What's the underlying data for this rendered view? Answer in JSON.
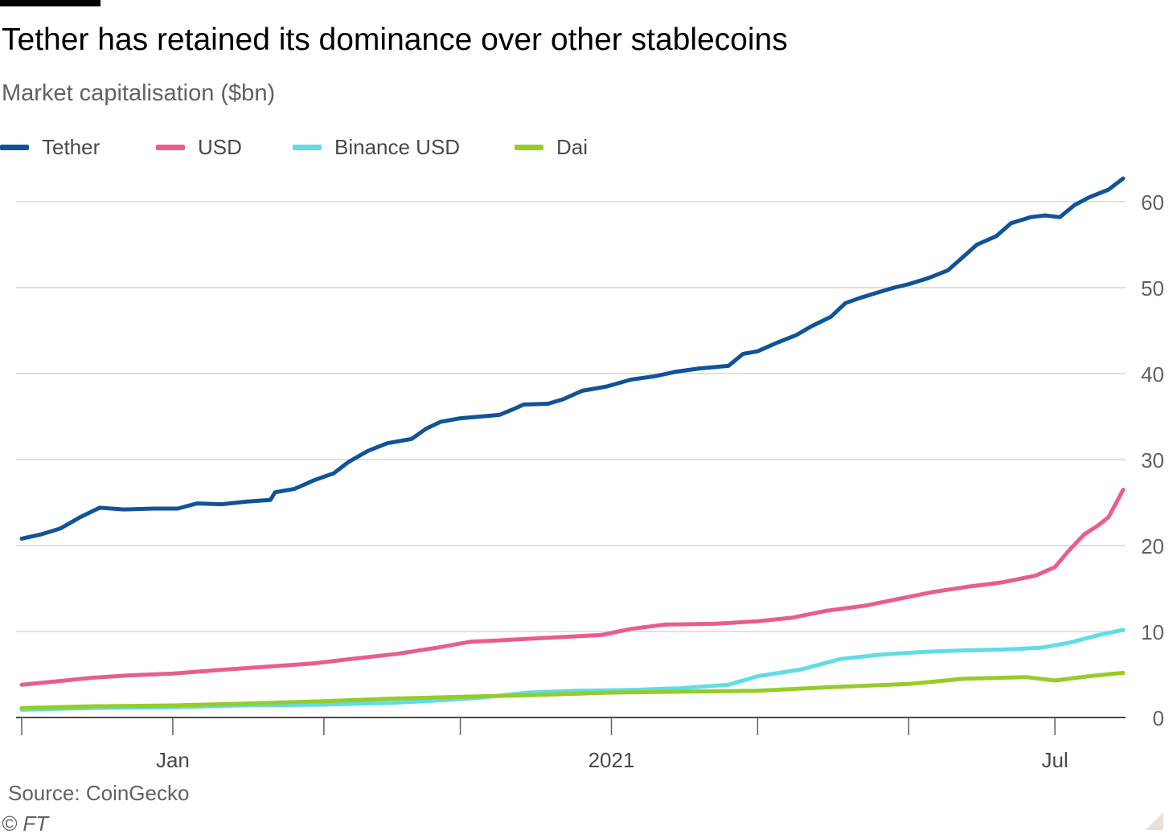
{
  "header": {
    "title": "Tether has retained its dominance over other stablecoins",
    "subtitle": "Market capitalisation ($bn)"
  },
  "footer": {
    "source": "Source: CoinGecko",
    "copyright": "© FT"
  },
  "colors": {
    "tether": "#0f5499",
    "usd": "#e95d8c",
    "binance": "#5fdde5",
    "dai": "#96cc28",
    "grid": "#e6e0d8",
    "axis_text": "#66605c"
  },
  "chart_data": {
    "type": "line",
    "title": "Tether has retained its dominance over other stablecoins",
    "ylabel": "Market capitalisation ($bn)",
    "ylim": [
      0,
      65
    ],
    "y_ticks": [
      0,
      10,
      20,
      30,
      40,
      50,
      60
    ],
    "y_axis_side": "right",
    "x_range": [
      "2020-12-01",
      "2021-07-15"
    ],
    "x_labels": [
      {
        "label": "Jan",
        "date": "2021-01-01"
      },
      {
        "label": "2021",
        "date": "2021-04-01"
      },
      {
        "label": "Jul",
        "date": "2021-07-01"
      }
    ],
    "x_minor_ticks": [
      "2020-12-01",
      "2021-01-01",
      "2021-02-01",
      "2021-03-01",
      "2021-04-01",
      "2021-05-01",
      "2021-06-01",
      "2021-07-01"
    ],
    "legend_position": "top-left",
    "grid": true,
    "series": [
      {
        "name": "Tether",
        "color": "#0f5499",
        "points": [
          [
            "2020-12-01",
            20.8
          ],
          [
            "2020-12-05",
            21.3
          ],
          [
            "2020-12-09",
            22.0
          ],
          [
            "2020-12-13",
            23.3
          ],
          [
            "2020-12-17",
            24.4
          ],
          [
            "2020-12-22",
            24.2
          ],
          [
            "2020-12-28",
            24.3
          ],
          [
            "2021-01-02",
            24.3
          ],
          [
            "2021-01-06",
            24.9
          ],
          [
            "2021-01-11",
            24.8
          ],
          [
            "2021-01-16",
            25.1
          ],
          [
            "2021-01-21",
            25.3
          ],
          [
            "2021-01-22",
            26.2
          ],
          [
            "2021-01-26",
            26.6
          ],
          [
            "2021-01-30",
            27.6
          ],
          [
            "2021-02-03",
            28.4
          ],
          [
            "2021-02-06",
            29.7
          ],
          [
            "2021-02-10",
            31.0
          ],
          [
            "2021-02-14",
            31.9
          ],
          [
            "2021-02-19",
            32.4
          ],
          [
            "2021-02-22",
            33.6
          ],
          [
            "2021-02-25",
            34.4
          ],
          [
            "2021-03-01",
            34.8
          ],
          [
            "2021-03-05",
            35.0
          ],
          [
            "2021-03-09",
            35.2
          ],
          [
            "2021-03-12",
            35.9
          ],
          [
            "2021-03-14",
            36.4
          ],
          [
            "2021-03-19",
            36.5
          ],
          [
            "2021-03-22",
            37.0
          ],
          [
            "2021-03-26",
            38.0
          ],
          [
            "2021-03-31",
            38.5
          ],
          [
            "2021-04-05",
            39.3
          ],
          [
            "2021-04-10",
            39.7
          ],
          [
            "2021-04-14",
            40.2
          ],
          [
            "2021-04-19",
            40.6
          ],
          [
            "2021-04-23",
            40.8
          ],
          [
            "2021-04-25",
            40.9
          ],
          [
            "2021-04-28",
            42.3
          ],
          [
            "2021-05-01",
            42.6
          ],
          [
            "2021-05-05",
            43.6
          ],
          [
            "2021-05-09",
            44.5
          ],
          [
            "2021-05-12",
            45.5
          ],
          [
            "2021-05-16",
            46.6
          ],
          [
            "2021-05-19",
            48.2
          ],
          [
            "2021-05-22",
            48.8
          ],
          [
            "2021-05-26",
            49.5
          ],
          [
            "2021-05-29",
            50.0
          ],
          [
            "2021-06-01",
            50.4
          ],
          [
            "2021-06-05",
            51.1
          ],
          [
            "2021-06-09",
            52.0
          ],
          [
            "2021-06-12",
            53.5
          ],
          [
            "2021-06-15",
            55.0
          ],
          [
            "2021-06-19",
            56.0
          ],
          [
            "2021-06-22",
            57.5
          ],
          [
            "2021-06-26",
            58.2
          ],
          [
            "2021-06-29",
            58.4
          ],
          [
            "2021-07-02",
            58.2
          ],
          [
            "2021-07-05",
            59.6
          ],
          [
            "2021-07-08",
            60.5
          ],
          [
            "2021-07-12",
            61.4
          ],
          [
            "2021-07-15",
            62.7
          ]
        ]
      },
      {
        "name": "USD",
        "color": "#e95d8c",
        "points": [
          [
            "2020-12-01",
            3.8
          ],
          [
            "2020-12-08",
            4.2
          ],
          [
            "2020-12-15",
            4.6
          ],
          [
            "2020-12-23",
            4.9
          ],
          [
            "2021-01-01",
            5.1
          ],
          [
            "2021-01-10",
            5.5
          ],
          [
            "2021-01-20",
            5.9
          ],
          [
            "2021-01-30",
            6.3
          ],
          [
            "2021-02-08",
            6.9
          ],
          [
            "2021-02-16",
            7.4
          ],
          [
            "2021-02-24",
            8.1
          ],
          [
            "2021-03-03",
            8.8
          ],
          [
            "2021-03-10",
            9.0
          ],
          [
            "2021-03-20",
            9.3
          ],
          [
            "2021-03-30",
            9.6
          ],
          [
            "2021-04-05",
            10.3
          ],
          [
            "2021-04-12",
            10.8
          ],
          [
            "2021-04-22",
            10.9
          ],
          [
            "2021-05-01",
            11.2
          ],
          [
            "2021-05-08",
            11.6
          ],
          [
            "2021-05-15",
            12.4
          ],
          [
            "2021-05-23",
            13.0
          ],
          [
            "2021-05-30",
            13.8
          ],
          [
            "2021-06-06",
            14.6
          ],
          [
            "2021-06-13",
            15.2
          ],
          [
            "2021-06-20",
            15.7
          ],
          [
            "2021-06-27",
            16.5
          ],
          [
            "2021-07-01",
            17.5
          ],
          [
            "2021-07-04",
            19.5
          ],
          [
            "2021-07-07",
            21.3
          ],
          [
            "2021-07-10",
            22.4
          ],
          [
            "2021-07-12",
            23.3
          ],
          [
            "2021-07-15",
            26.5
          ]
        ]
      },
      {
        "name": "Binance USD",
        "color": "#5fdde5",
        "points": [
          [
            "2020-12-01",
            0.9
          ],
          [
            "2020-12-15",
            1.1
          ],
          [
            "2021-01-01",
            1.2
          ],
          [
            "2021-01-15",
            1.4
          ],
          [
            "2021-02-01",
            1.5
          ],
          [
            "2021-02-15",
            1.7
          ],
          [
            "2021-02-25",
            2.0
          ],
          [
            "2021-03-05",
            2.3
          ],
          [
            "2021-03-15",
            2.9
          ],
          [
            "2021-03-25",
            3.1
          ],
          [
            "2021-04-05",
            3.2
          ],
          [
            "2021-04-15",
            3.4
          ],
          [
            "2021-04-25",
            3.8
          ],
          [
            "2021-05-01",
            4.8
          ],
          [
            "2021-05-10",
            5.6
          ],
          [
            "2021-05-18",
            6.8
          ],
          [
            "2021-05-26",
            7.3
          ],
          [
            "2021-06-03",
            7.6
          ],
          [
            "2021-06-12",
            7.8
          ],
          [
            "2021-06-20",
            7.9
          ],
          [
            "2021-06-28",
            8.1
          ],
          [
            "2021-07-04",
            8.7
          ],
          [
            "2021-07-10",
            9.6
          ],
          [
            "2021-07-15",
            10.2
          ]
        ]
      },
      {
        "name": "Dai",
        "color": "#96cc28",
        "points": [
          [
            "2020-12-01",
            1.1
          ],
          [
            "2020-12-15",
            1.3
          ],
          [
            "2021-01-01",
            1.4
          ],
          [
            "2021-01-15",
            1.6
          ],
          [
            "2021-02-01",
            1.9
          ],
          [
            "2021-02-15",
            2.2
          ],
          [
            "2021-03-01",
            2.4
          ],
          [
            "2021-03-15",
            2.6
          ],
          [
            "2021-04-01",
            2.9
          ],
          [
            "2021-04-15",
            3.0
          ],
          [
            "2021-05-01",
            3.1
          ],
          [
            "2021-05-15",
            3.5
          ],
          [
            "2021-06-01",
            3.9
          ],
          [
            "2021-06-12",
            4.5
          ],
          [
            "2021-06-25",
            4.7
          ],
          [
            "2021-07-01",
            4.3
          ],
          [
            "2021-07-08",
            4.8
          ],
          [
            "2021-07-15",
            5.2
          ]
        ]
      }
    ]
  }
}
